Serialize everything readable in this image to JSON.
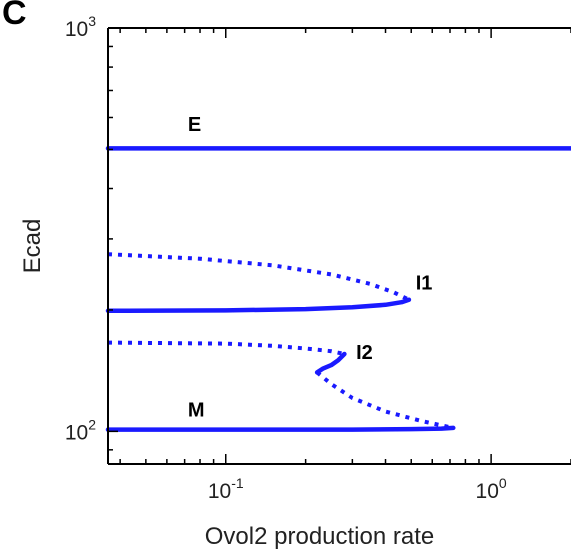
{
  "panel_letter": "C",
  "chart_data": {
    "type": "line",
    "title": "",
    "xlabel": "Ovol2 production rate",
    "ylabel": "Ecad",
    "xscale": "log",
    "yscale": "log",
    "xlim": [
      0.036,
      2.0
    ],
    "ylim": [
      83,
      1000
    ],
    "x_ticks": [
      {
        "value": 0.1,
        "base": "10",
        "exp": "-1"
      },
      {
        "value": 1.0,
        "base": "10",
        "exp": "0"
      }
    ],
    "y_ticks": [
      {
        "value": 100,
        "base": "10",
        "exp": "2"
      },
      {
        "value": 1000,
        "base": "10",
        "exp": "3"
      }
    ],
    "grid": false,
    "legend": "none",
    "color": "#1a1aff",
    "series": [
      {
        "label": "E",
        "style": "solid",
        "points": [
          [
            0.036,
            503
          ],
          [
            2.0,
            503
          ]
        ]
      },
      {
        "label": "I1",
        "style": "solid",
        "points": [
          [
            0.036,
            199
          ],
          [
            0.1,
            199.5
          ],
          [
            0.2,
            201
          ],
          [
            0.3,
            203
          ],
          [
            0.4,
            206
          ],
          [
            0.46,
            209
          ],
          [
            0.49,
            212
          ]
        ]
      },
      {
        "style": "dotted",
        "points": [
          [
            0.036,
            275
          ],
          [
            0.08,
            268
          ],
          [
            0.15,
            258
          ],
          [
            0.25,
            245
          ],
          [
            0.35,
            232
          ],
          [
            0.43,
            221
          ],
          [
            0.49,
            212
          ]
        ]
      },
      {
        "style": "dotted",
        "points": [
          [
            0.036,
            166
          ],
          [
            0.1,
            165
          ],
          [
            0.15,
            163
          ],
          [
            0.2,
            160.5
          ],
          [
            0.25,
            158
          ],
          [
            0.28,
            155.5
          ]
        ]
      },
      {
        "label": "I2",
        "style": "solid",
        "points": [
          [
            0.28,
            155.5
          ],
          [
            0.265,
            150
          ],
          [
            0.25,
            146
          ],
          [
            0.232,
            143
          ],
          [
            0.221,
            140
          ]
        ]
      },
      {
        "style": "dotted",
        "points": [
          [
            0.221,
            140
          ],
          [
            0.25,
            131
          ],
          [
            0.3,
            121
          ],
          [
            0.4,
            112
          ],
          [
            0.55,
            106
          ],
          [
            0.72,
            102
          ]
        ]
      },
      {
        "label": "M",
        "style": "solid",
        "points": [
          [
            0.036,
            101
          ],
          [
            0.1,
            101
          ],
          [
            0.3,
            101
          ],
          [
            0.5,
            101.3
          ],
          [
            0.65,
            101.6
          ],
          [
            0.72,
            102
          ]
        ]
      }
    ],
    "annotations": [
      {
        "text": "E",
        "x": 0.072,
        "y": 555
      },
      {
        "text": "I1",
        "x": 0.52,
        "y": 225
      },
      {
        "text": "I2",
        "x": 0.31,
        "y": 151
      },
      {
        "text": "M",
        "x": 0.072,
        "y": 109
      }
    ]
  }
}
